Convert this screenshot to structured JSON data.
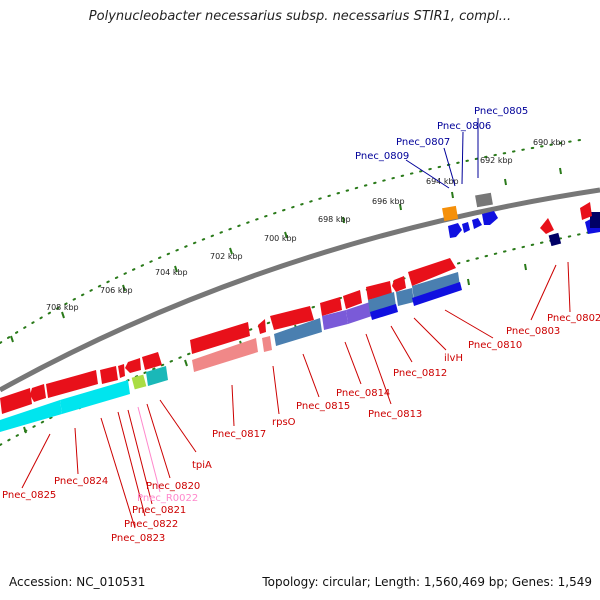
{
  "title": "Polynucleobacter necessarius subsp. necessarius STIR1, compl...",
  "footer": {
    "accession": "Accession: NC_010531",
    "summary": "Topology: circular; Length: 1,560,469 bp; Genes: 1,549"
  },
  "colors": {
    "backbone": "#777777",
    "tick": "#2a7a1a",
    "forward_label": "#000099",
    "reverse_label": "#cc0000",
    "rna_label": "#ff88cc"
  },
  "scale_labels": [
    "690 kbp",
    "692 kbp",
    "694 kbp",
    "696 kbp",
    "698 kbp",
    "700 kbp",
    "702 kbp",
    "704 kbp",
    "706 kbp",
    "708 kbp"
  ],
  "gene_labels_top": [
    "Pnec_0805",
    "Pnec_0806",
    "Pnec_0807",
    "Pnec_0809"
  ],
  "gene_labels_bottom": [
    "Pnec_0802",
    "Pnec_0803",
    "Pnec_0810",
    "ilvH",
    "Pnec_0812",
    "Pnec_0813",
    "Pnec_0814",
    "Pnec_0815",
    "rpsO",
    "Pnec_0817",
    "tpiA",
    "Pnec_0820",
    "Pnec_R0022",
    "Pnec_0821",
    "Pnec_0822",
    "Pnec_0823",
    "Pnec_0824",
    "Pnec_0825"
  ]
}
